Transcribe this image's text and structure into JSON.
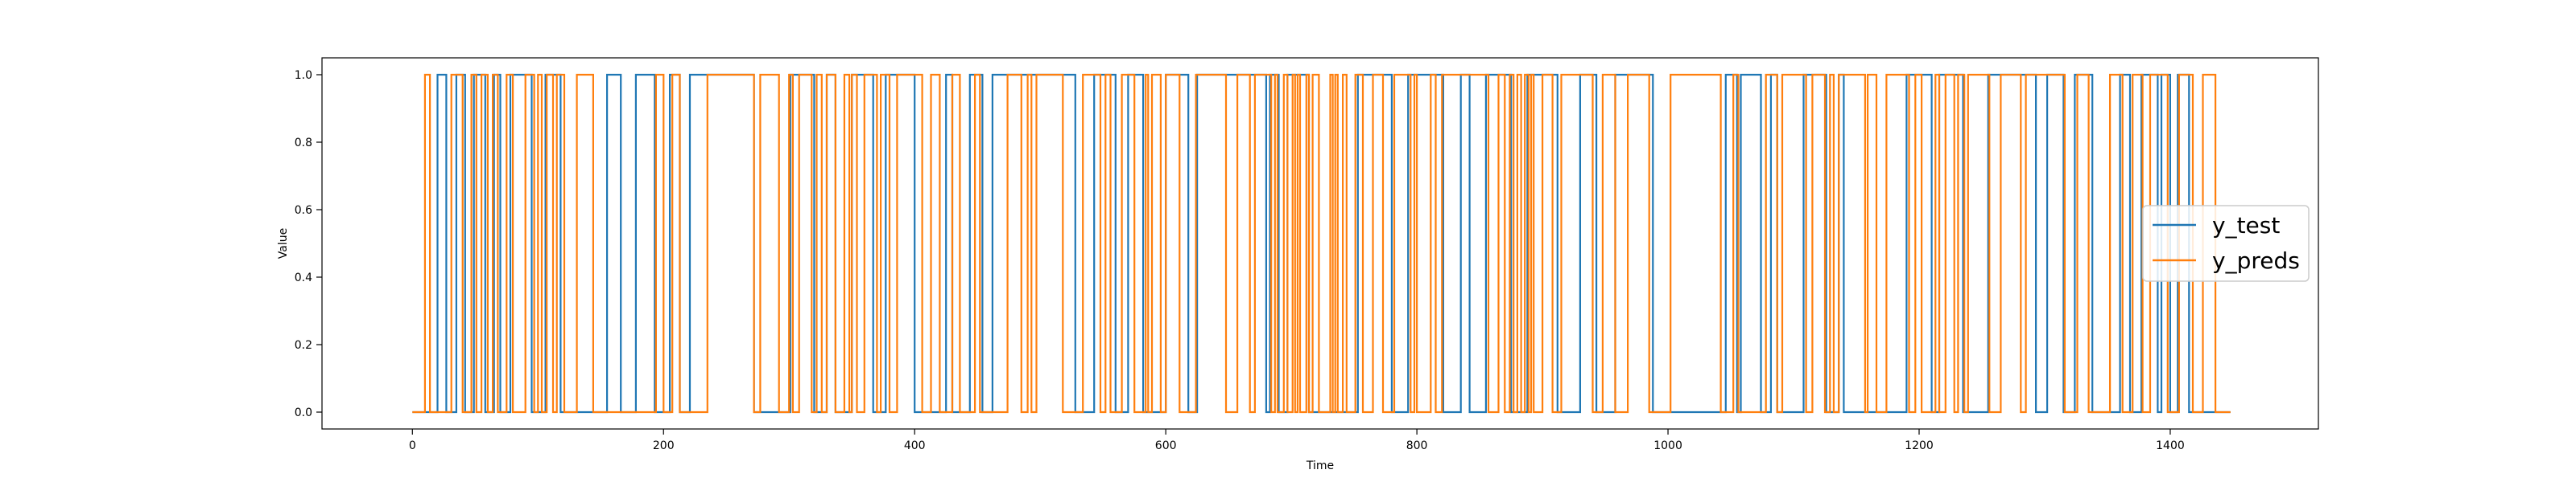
{
  "chart_data": {
    "type": "line",
    "step": true,
    "xlabel": "Time",
    "ylabel": "Value",
    "xlim": [
      -72,
      1518
    ],
    "ylim": [
      -0.05,
      1.05
    ],
    "xticks": [
      0,
      200,
      400,
      600,
      800,
      1000,
      1200,
      1400
    ],
    "yticks": [
      0.0,
      0.2,
      0.4,
      0.6,
      0.8,
      1.0
    ],
    "xtick_labels": [
      "0",
      "200",
      "400",
      "600",
      "800",
      "1000",
      "1200",
      "1400"
    ],
    "ytick_labels": [
      "0.0",
      "0.2",
      "0.4",
      "0.6",
      "0.8",
      "1.0"
    ],
    "legend": {
      "placement": "center-right"
    },
    "grid": false,
    "x_max": 1448,
    "series": [
      {
        "name": "y_test",
        "color": "#1f77b4",
        "initial": 0,
        "transitions": [
          20,
          27,
          35,
          42,
          49,
          58,
          65,
          70,
          78,
          95,
          106,
          118,
          155,
          166,
          178,
          193,
          205,
          213,
          221,
          272,
          301,
          320,
          330,
          337,
          350,
          367,
          377,
          400,
          425,
          430,
          444,
          454,
          462,
          528,
          543,
          560,
          570,
          582,
          600,
          618,
          625,
          680,
          683,
          690,
          697,
          714,
          753,
          780,
          793,
          821,
          835,
          842,
          855,
          875,
          888,
          912,
          930,
          943,
          958,
          988,
          1046,
          1055,
          1058,
          1074,
          1082,
          1087,
          1108,
          1126,
          1136,
          1140,
          1190,
          1210,
          1216,
          1235,
          1255,
          1293,
          1302,
          1315,
          1324,
          1338,
          1360,
          1368,
          1377,
          1390,
          1393,
          1400,
          1406,
          1415,
          1448
        ]
      },
      {
        "name": "y_preds",
        "color": "#ff7f0e",
        "initial": 0,
        "transitions": [
          10,
          14,
          31,
          40,
          47,
          51,
          55,
          60,
          64,
          68,
          75,
          80,
          90,
          97,
          100,
          103,
          107,
          112,
          115,
          121,
          131,
          144,
          194,
          200,
          207,
          213,
          235,
          272,
          277,
          292,
          300,
          303,
          308,
          318,
          322,
          326,
          330,
          337,
          344,
          348,
          350,
          354,
          360,
          370,
          373,
          380,
          386,
          406,
          413,
          420,
          430,
          436,
          448,
          452,
          474,
          485,
          490,
          493,
          497,
          518,
          534,
          548,
          552,
          556,
          565,
          575,
          584,
          586,
          589,
          596,
          600,
          611,
          624,
          648,
          657,
          667,
          671,
          684,
          687,
          689,
          694,
          697,
          701,
          703,
          705,
          707,
          712,
          714,
          717,
          722,
          731,
          733,
          735,
          737,
          741,
          744,
          751,
          757,
          765,
          773,
          782,
          795,
          798,
          800,
          811,
          815,
          820,
          857,
          865,
          870,
          874,
          877,
          880,
          883,
          886,
          889,
          891,
          893,
          900,
          908,
          915,
          940,
          948,
          958,
          968,
          985,
          1002,
          1042,
          1052,
          1056,
          1078,
          1087,
          1091,
          1110,
          1115,
          1125,
          1129,
          1132,
          1136,
          1157,
          1159,
          1166,
          1174,
          1192,
          1197,
          1202,
          1213,
          1216,
          1221,
          1228,
          1231,
          1236,
          1239,
          1256,
          1265,
          1281,
          1285,
          1316,
          1326,
          1335,
          1352,
          1362,
          1370,
          1378,
          1384,
          1398,
          1407,
          1418,
          1426,
          1436,
          1448
        ]
      }
    ]
  }
}
